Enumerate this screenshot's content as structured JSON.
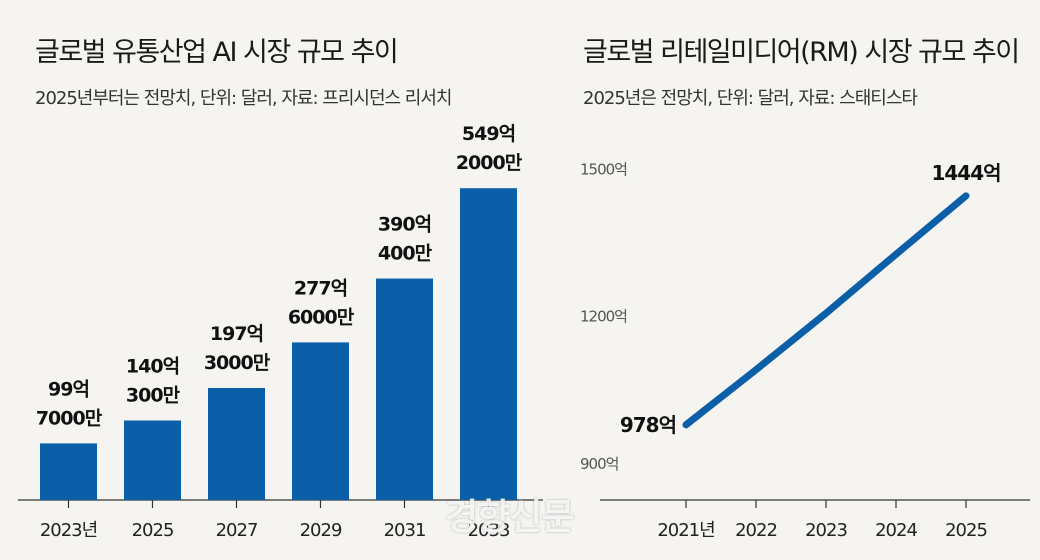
{
  "charts": {
    "left": {
      "title": "글로벌 유통산업 AI 시장 규모 추이",
      "subtitle": "2025년부터는 전망치, 단위: 달러, 자료: 프리시던스 리서치"
    },
    "right": {
      "title": "글로벌 리테일미디어(RM) 시장 규모 추이",
      "subtitle": "2025년은 전망치, 단위: 달러, 자료: 스태티스타"
    }
  },
  "watermark": "경향신문",
  "colors": {
    "bar": "#0b5fa8",
    "line": "#0b5fa8",
    "background": "#f5f4f0",
    "axis": "#333333"
  },
  "chart_data": [
    {
      "type": "bar",
      "title": "글로벌 유통산업 AI 시장 규모 추이",
      "categories": [
        "2023년",
        "2025",
        "2027",
        "2029",
        "2031",
        "2033"
      ],
      "values": [
        99.7,
        140.03,
        197.3,
        277.6,
        390.04,
        549.2
      ],
      "value_unit": "억 달러",
      "data_labels": [
        [
          "99억",
          "7000만"
        ],
        [
          "140억",
          "300만"
        ],
        [
          "197억",
          "3000만"
        ],
        [
          "277억",
          "6000만"
        ],
        [
          "390억",
          "400만"
        ],
        [
          "549억",
          "2000만"
        ]
      ],
      "ylim": [
        0,
        620
      ],
      "grid": false
    },
    {
      "type": "line",
      "title": "글로벌 리테일미디어(RM) 시장 규모 추이",
      "x_labels": [
        "2021년",
        "2022",
        "2023",
        "2024",
        "2025"
      ],
      "values": [
        978,
        1090,
        1205,
        1325,
        1444
      ],
      "ylim": [
        825,
        1525
      ],
      "y_ticks": [
        900,
        1200,
        1500
      ],
      "y_tick_labels": [
        "900억",
        "1200억",
        "1500억"
      ],
      "point_labels": {
        "0": "978억",
        "4": "1444억"
      },
      "grid": false
    }
  ]
}
